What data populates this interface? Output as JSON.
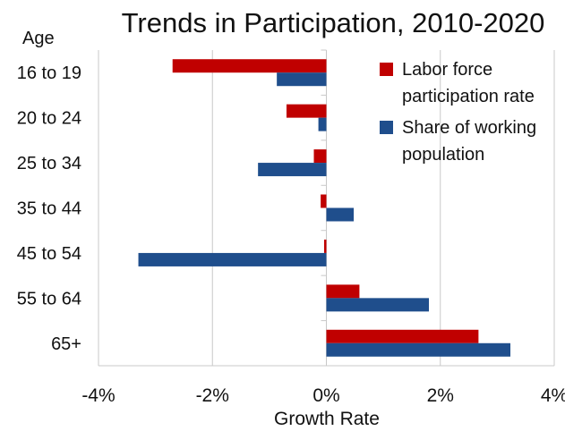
{
  "chart_data": {
    "type": "bar",
    "orientation": "horizontal",
    "title": "Trends in Participation, 2010-2020",
    "category_axis_label": "Age",
    "xlabel": "Growth Rate",
    "categories": [
      "16 to 19",
      "20 to 24",
      "25 to 34",
      "35 to 44",
      "45 to 54",
      "55 to 64",
      "65+"
    ],
    "series": [
      {
        "name": "Labor force participation rate",
        "legend_lines": [
          "Labor force",
          "participation rate"
        ],
        "color": "#c00000",
        "values": [
          -2.7,
          -0.7,
          -0.22,
          -0.1,
          -0.04,
          0.58,
          2.67
        ]
      },
      {
        "name": "Share of working population",
        "legend_lines": [
          "Share of working",
          "population"
        ],
        "color": "#1f4e8c",
        "values": [
          -0.87,
          -0.14,
          -1.2,
          0.48,
          -3.3,
          1.8,
          3.23
        ]
      }
    ],
    "x_ticks": [
      -4,
      -2,
      0,
      2,
      4
    ],
    "x_tick_labels": [
      "-4%",
      "-2%",
      "0%",
      "2%",
      "4%"
    ],
    "xlim": [
      -4,
      4
    ],
    "grid": "vertical",
    "legend_position": "top-right",
    "gridline_color": "#c8c8c8"
  }
}
